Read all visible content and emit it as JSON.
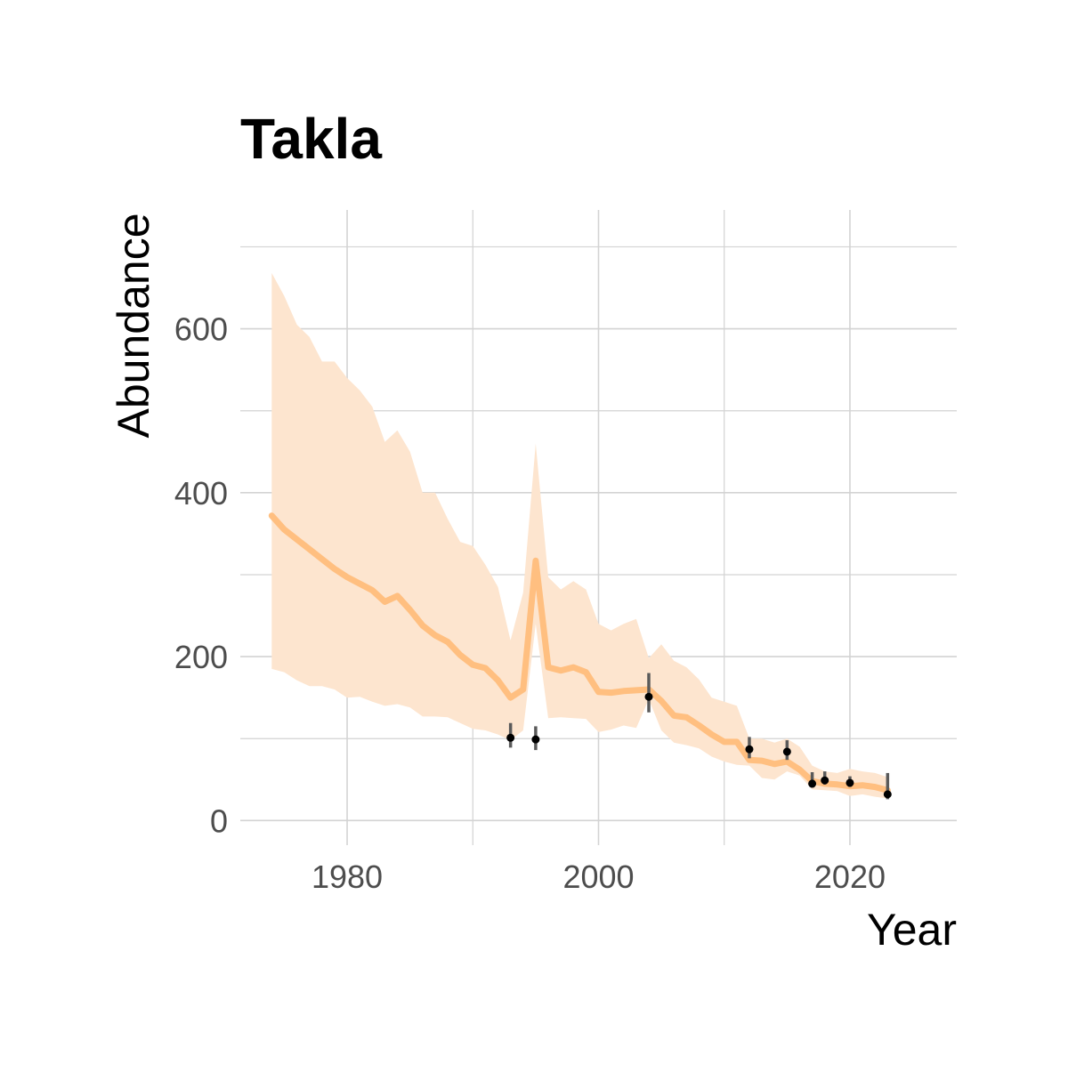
{
  "chart_data": {
    "type": "line",
    "title": "Takla",
    "xlabel": "Year",
    "ylabel": "Abundance",
    "xlim": [
      1971.5,
      2028.5
    ],
    "ylim": [
      -30,
      745
    ],
    "x_ticks": [
      1980,
      2000,
      2020
    ],
    "x_tick_labels": [
      "1980",
      "2000",
      "2020"
    ],
    "x_minor": [
      1970,
      1990,
      2010,
      2030
    ],
    "y_ticks": [
      0,
      200,
      400,
      600
    ],
    "y_tick_labels": [
      "0",
      "200",
      "400",
      "600"
    ],
    "y_minor": [
      100,
      300,
      500,
      700
    ],
    "grid": true,
    "legend": "none",
    "colors": {
      "line": "#ffbf80",
      "ribbon": "#fde5cf",
      "points": "#000000",
      "errorbars": "#5a5a5a"
    },
    "series": [
      {
        "type": "ribbon-line",
        "x": [
          1974,
          1975,
          1976,
          1977,
          1978,
          1979,
          1980,
          1981,
          1982,
          1983,
          1984,
          1985,
          1986,
          1987,
          1988,
          1989,
          1990,
          1991,
          1992,
          1993,
          1994,
          1995,
          1996,
          1997,
          1998,
          1999,
          2000,
          2001,
          2002,
          2003,
          2004,
          2005,
          2006,
          2007,
          2008,
          2009,
          2010,
          2011,
          2012,
          2013,
          2014,
          2015,
          2016,
          2017,
          2018,
          2019,
          2020,
          2021,
          2022,
          2023
        ],
        "y": [
          372,
          355,
          343,
          331,
          319,
          307,
          297,
          289,
          281,
          267,
          274,
          257,
          238,
          226,
          218,
          202,
          190,
          186,
          171,
          150,
          160,
          317,
          187,
          183,
          187,
          181,
          157,
          156,
          158,
          159,
          160,
          146,
          128,
          126,
          116,
          105,
          96,
          96,
          74,
          73,
          69,
          72,
          62,
          48,
          45,
          44,
          42,
          43,
          41,
          37
        ],
        "lower": [
          185,
          181,
          171,
          164,
          164,
          160,
          150,
          151,
          145,
          140,
          142,
          138,
          127,
          127,
          126,
          119,
          112,
          110,
          105,
          98,
          110,
          240,
          125,
          126,
          125,
          124,
          108,
          111,
          116,
          113,
          148,
          110,
          95,
          92,
          88,
          78,
          72,
          68,
          67,
          52,
          50,
          60,
          55,
          38,
          37,
          36,
          30,
          32,
          29,
          27
        ],
        "upper": [
          668,
          640,
          605,
          590,
          560,
          560,
          540,
          525,
          505,
          462,
          476,
          450,
          400,
          400,
          368,
          340,
          335,
          312,
          285,
          220,
          278,
          460,
          297,
          282,
          292,
          282,
          240,
          232,
          240,
          246,
          198,
          215,
          195,
          187,
          172,
          150,
          145,
          140,
          100,
          100,
          95,
          100,
          90,
          67,
          60,
          58,
          63,
          60,
          58,
          53
        ]
      },
      {
        "type": "points-errorbars",
        "x": [
          1993,
          1995,
          2004,
          2012,
          2015,
          2017,
          2018,
          2020,
          2023
        ],
        "y": [
          101,
          99,
          151,
          87,
          84,
          45,
          49,
          46,
          32
        ],
        "lower": [
          89,
          86,
          132,
          76,
          74,
          40,
          44,
          41,
          26
        ],
        "upper": [
          119,
          115,
          180,
          102,
          98,
          59,
          60,
          54,
          58
        ]
      }
    ]
  }
}
